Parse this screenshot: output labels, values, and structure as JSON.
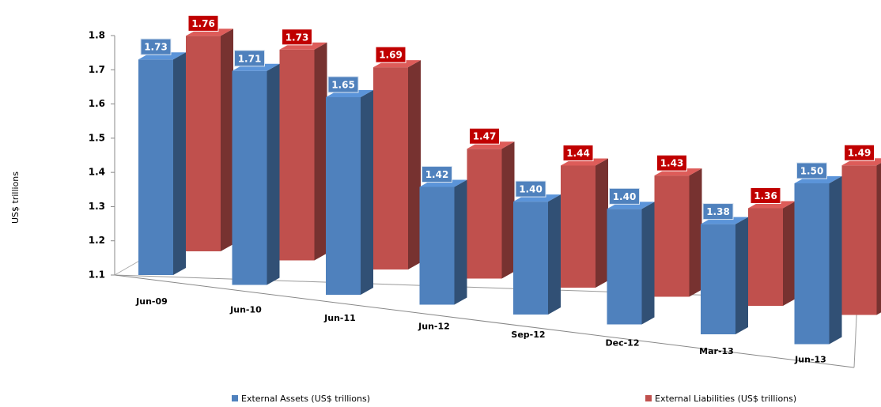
{
  "chart_data": {
    "type": "bar3d",
    "y_label": "US$ trillions",
    "categories": [
      "Jun-09",
      "Jun-10",
      "Jun-11",
      "Jun-12",
      "Sep-12",
      "Dec-12",
      "Mar-13",
      "Jun-13"
    ],
    "series": [
      {
        "name": "External Assets (US$ trillions)",
        "color": "#4f81bd",
        "values": [
          1.73,
          1.71,
          1.65,
          1.42,
          1.4,
          1.4,
          1.38,
          1.5
        ],
        "value_labels": [
          "1.73",
          "1.71",
          "1.65",
          "1.42",
          "1.40",
          "1.40",
          "1.38",
          "1.50"
        ]
      },
      {
        "name": "External Liabilities (US$ trillions)",
        "color": "#c0504d",
        "values": [
          1.76,
          1.73,
          1.69,
          1.47,
          1.44,
          1.43,
          1.36,
          1.49
        ],
        "value_labels": [
          "1.76",
          "1.73",
          "1.69",
          "1.47",
          "1.44",
          "1.43",
          "1.36",
          "1.49"
        ]
      }
    ],
    "ylim": [
      1.1,
      1.8
    ],
    "yticks": [
      1.1,
      1.2,
      1.3,
      1.4,
      1.5,
      1.6,
      1.7,
      1.8
    ]
  }
}
